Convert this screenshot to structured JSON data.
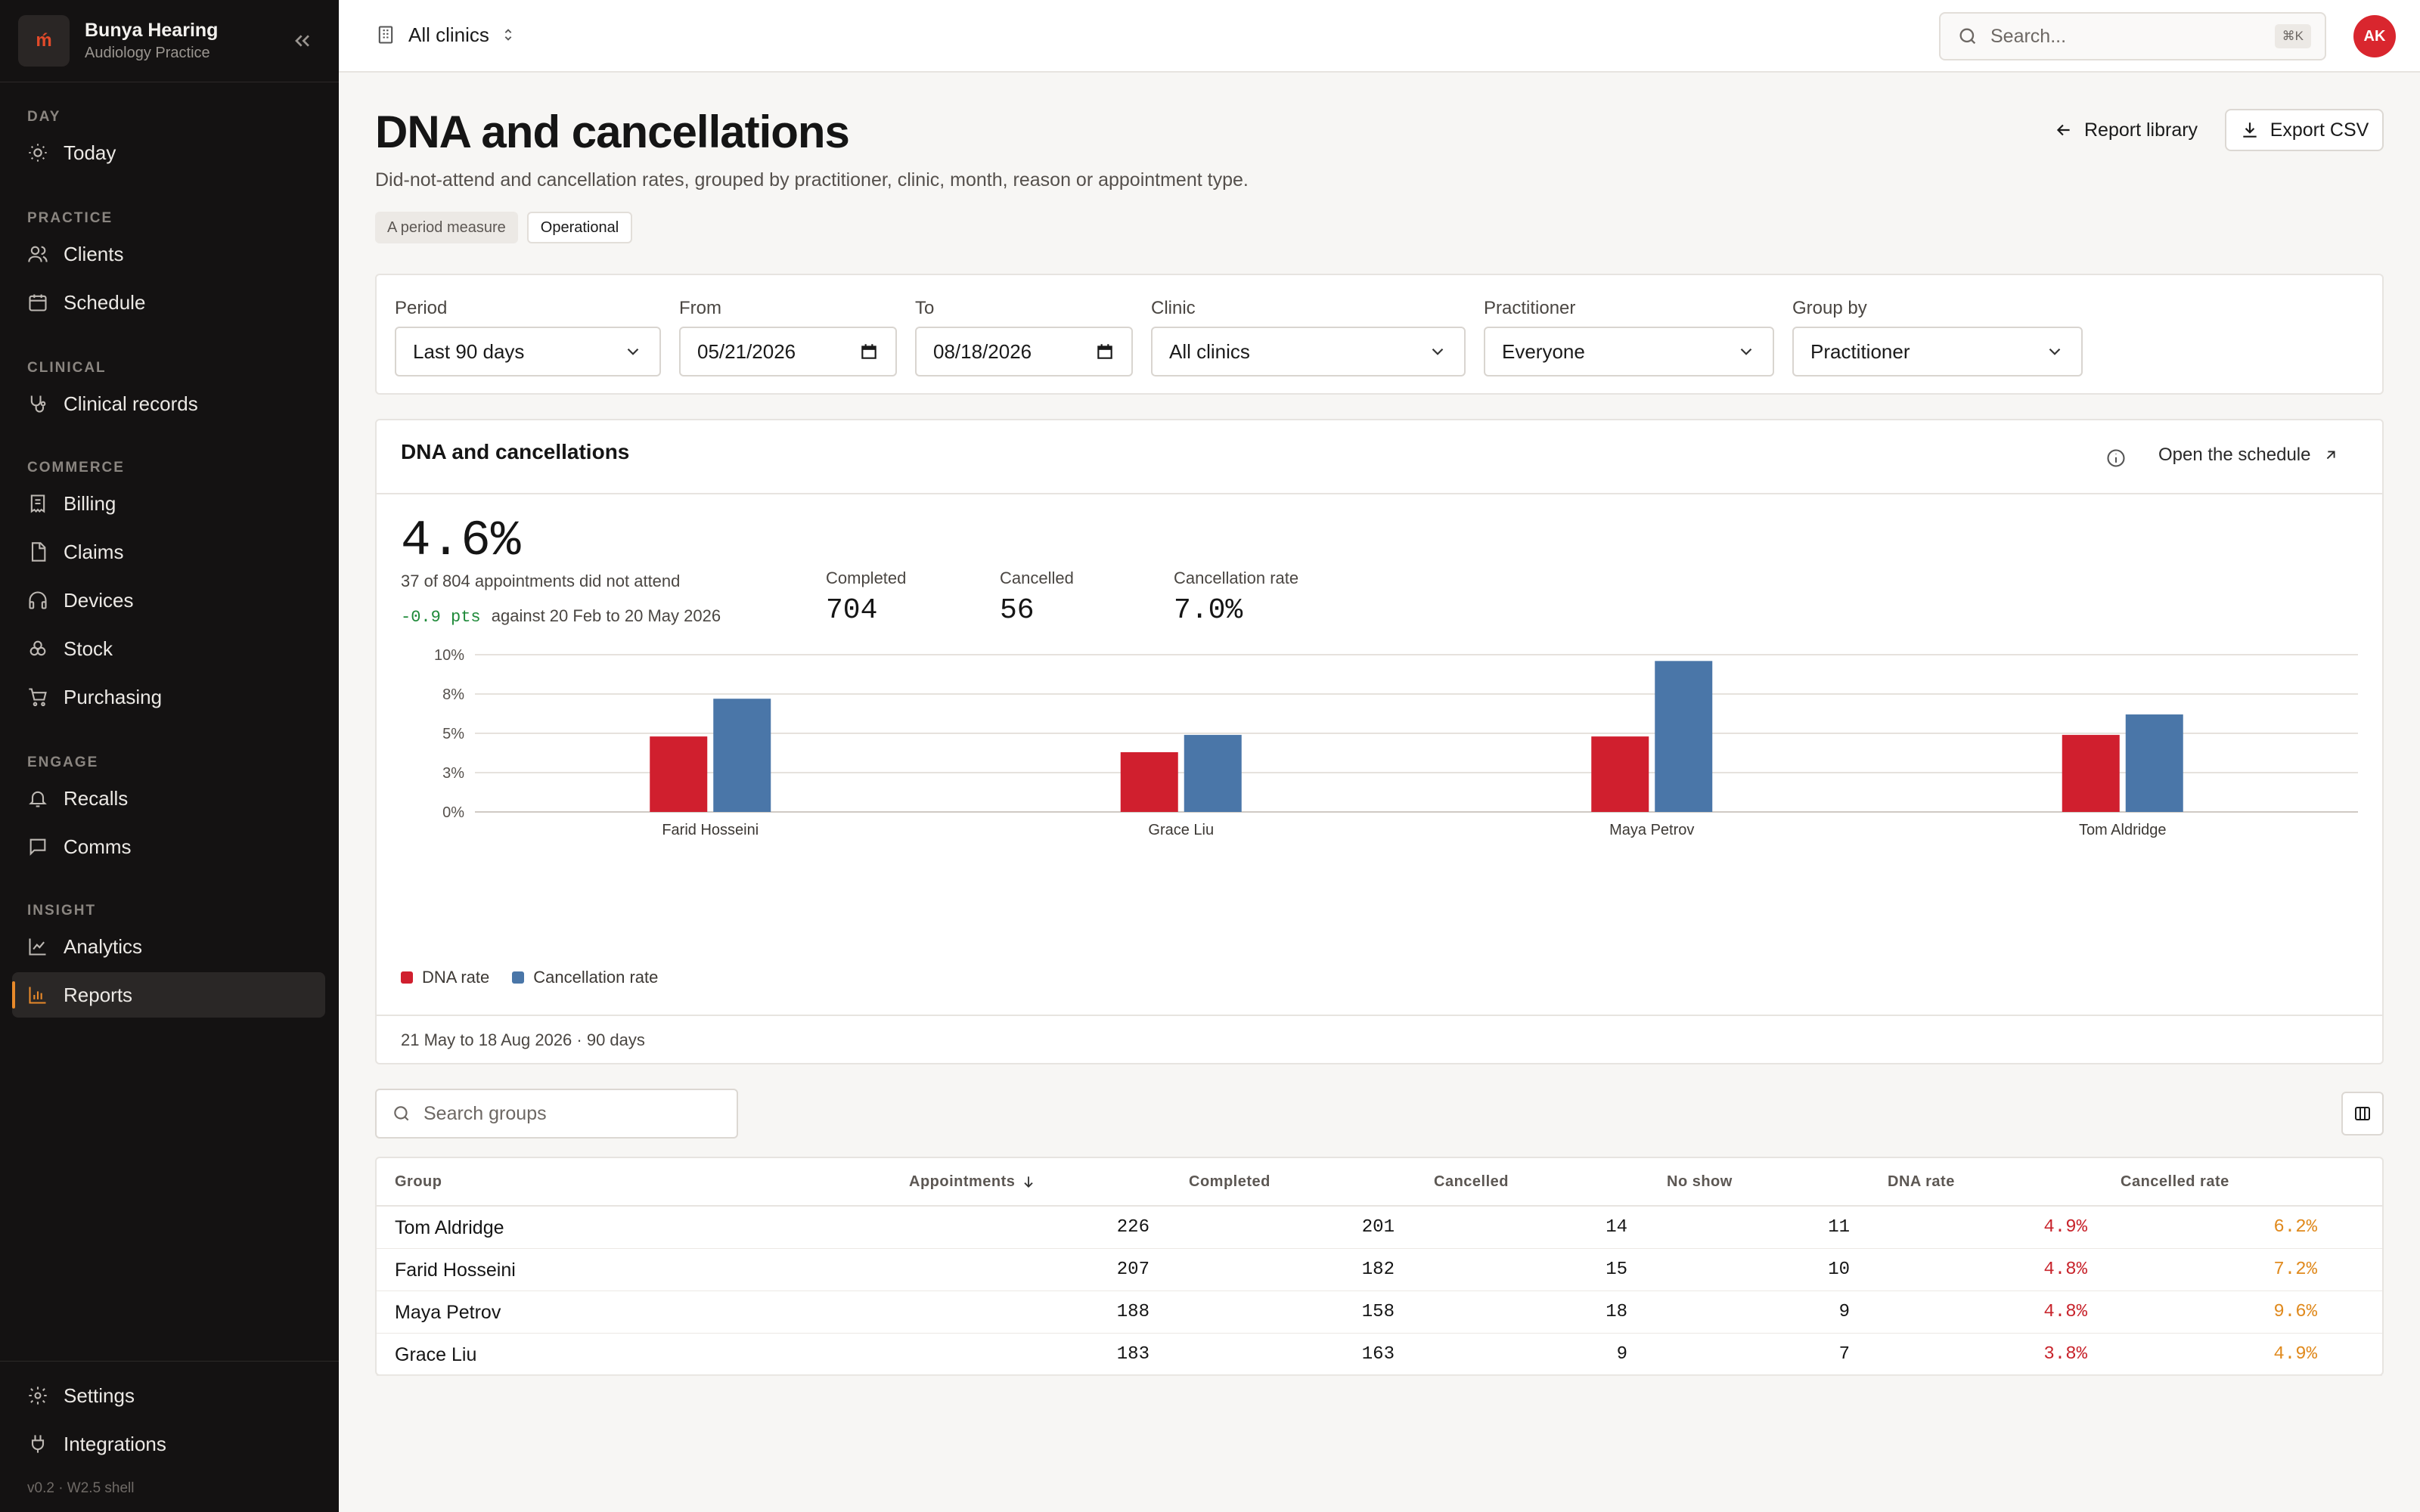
{
  "sidebar": {
    "brand_name": "Bunya Hearing",
    "brand_sub": "Audiology Practice",
    "brand_logo": "ḿ",
    "sections": {
      "day": "DAY",
      "practice": "PRACTICE",
      "clinical": "CLINICAL",
      "commerce": "COMMERCE",
      "engage": "ENGAGE",
      "insight": "INSIGHT"
    },
    "items": {
      "today": "Today",
      "clients": "Clients",
      "schedule": "Schedule",
      "clinical_records": "Clinical records",
      "billing": "Billing",
      "claims": "Claims",
      "devices": "Devices",
      "stock": "Stock",
      "purchasing": "Purchasing",
      "recalls": "Recalls",
      "comms": "Comms",
      "analytics": "Analytics",
      "reports": "Reports",
      "settings": "Settings",
      "integrations": "Integrations"
    },
    "version": "v0.2 · W2.5 shell"
  },
  "topbar": {
    "clinic": "All clinics",
    "search_placeholder": "Search...",
    "shortcut": "⌘K",
    "avatar_initials": "AK"
  },
  "header": {
    "title": "DNA and cancellations",
    "description": "Did-not-attend and cancellation rates, grouped by practitioner, clinic, month, reason or appointment type.",
    "tags": [
      "A period measure",
      "Operational"
    ],
    "library_label": "Report library",
    "export_label": "Export CSV"
  },
  "filters": {
    "period_label": "Period",
    "period_value": "Last 90 days",
    "from_label": "From",
    "from_value": "05/21/2026",
    "to_label": "To",
    "to_value": "08/18/2026",
    "clinic_label": "Clinic",
    "clinic_value": "All clinics",
    "practitioner_label": "Practitioner",
    "practitioner_value": "Everyone",
    "groupby_label": "Group by",
    "groupby_value": "Practitioner"
  },
  "card": {
    "title": "DNA and cancellations",
    "open_link": "Open the schedule",
    "kpi_value": "4.6%",
    "kpi_sub": "37 of 804 appointments did not attend",
    "delta_value": "-0.9 pts",
    "delta_text": "against 20 Feb to 20 May 2026",
    "stats": {
      "completed_label": "Completed",
      "completed_value": "704",
      "cancelled_label": "Cancelled",
      "cancelled_value": "56",
      "rate_label": "Cancellation rate",
      "rate_value": "7.0%"
    },
    "footer": "21 May to 18 Aug 2026 · 90 days"
  },
  "chart_data": {
    "type": "bar",
    "categories": [
      "Farid Hosseini",
      "Grace Liu",
      "Maya Petrov",
      "Tom Aldridge"
    ],
    "series": [
      {
        "name": "DNA rate",
        "values": [
          4.8,
          3.8,
          4.8,
          4.9
        ],
        "color": "#d01f2e"
      },
      {
        "name": "Cancellation rate",
        "values": [
          7.2,
          4.9,
          9.6,
          6.2
        ],
        "color": "#4a76a8"
      }
    ],
    "yticks": [
      "0%",
      "3%",
      "5%",
      "8%",
      "10%"
    ],
    "ylim": [
      0,
      10
    ],
    "grid": true,
    "legend": "bottom-left"
  },
  "table": {
    "search_placeholder": "Search groups",
    "headers": [
      "Group",
      "Appointments",
      "Completed",
      "Cancelled",
      "No show",
      "DNA rate",
      "Cancelled rate"
    ],
    "rows": [
      [
        "Tom Aldridge",
        "226",
        "201",
        "14",
        "11",
        "4.9%",
        "6.2%"
      ],
      [
        "Farid Hosseini",
        "207",
        "182",
        "15",
        "10",
        "4.8%",
        "7.2%"
      ],
      [
        "Maya Petrov",
        "188",
        "158",
        "18",
        "9",
        "4.8%",
        "9.6%"
      ],
      [
        "Grace Liu",
        "183",
        "163",
        "9",
        "7",
        "3.8%",
        "4.9%"
      ]
    ]
  }
}
